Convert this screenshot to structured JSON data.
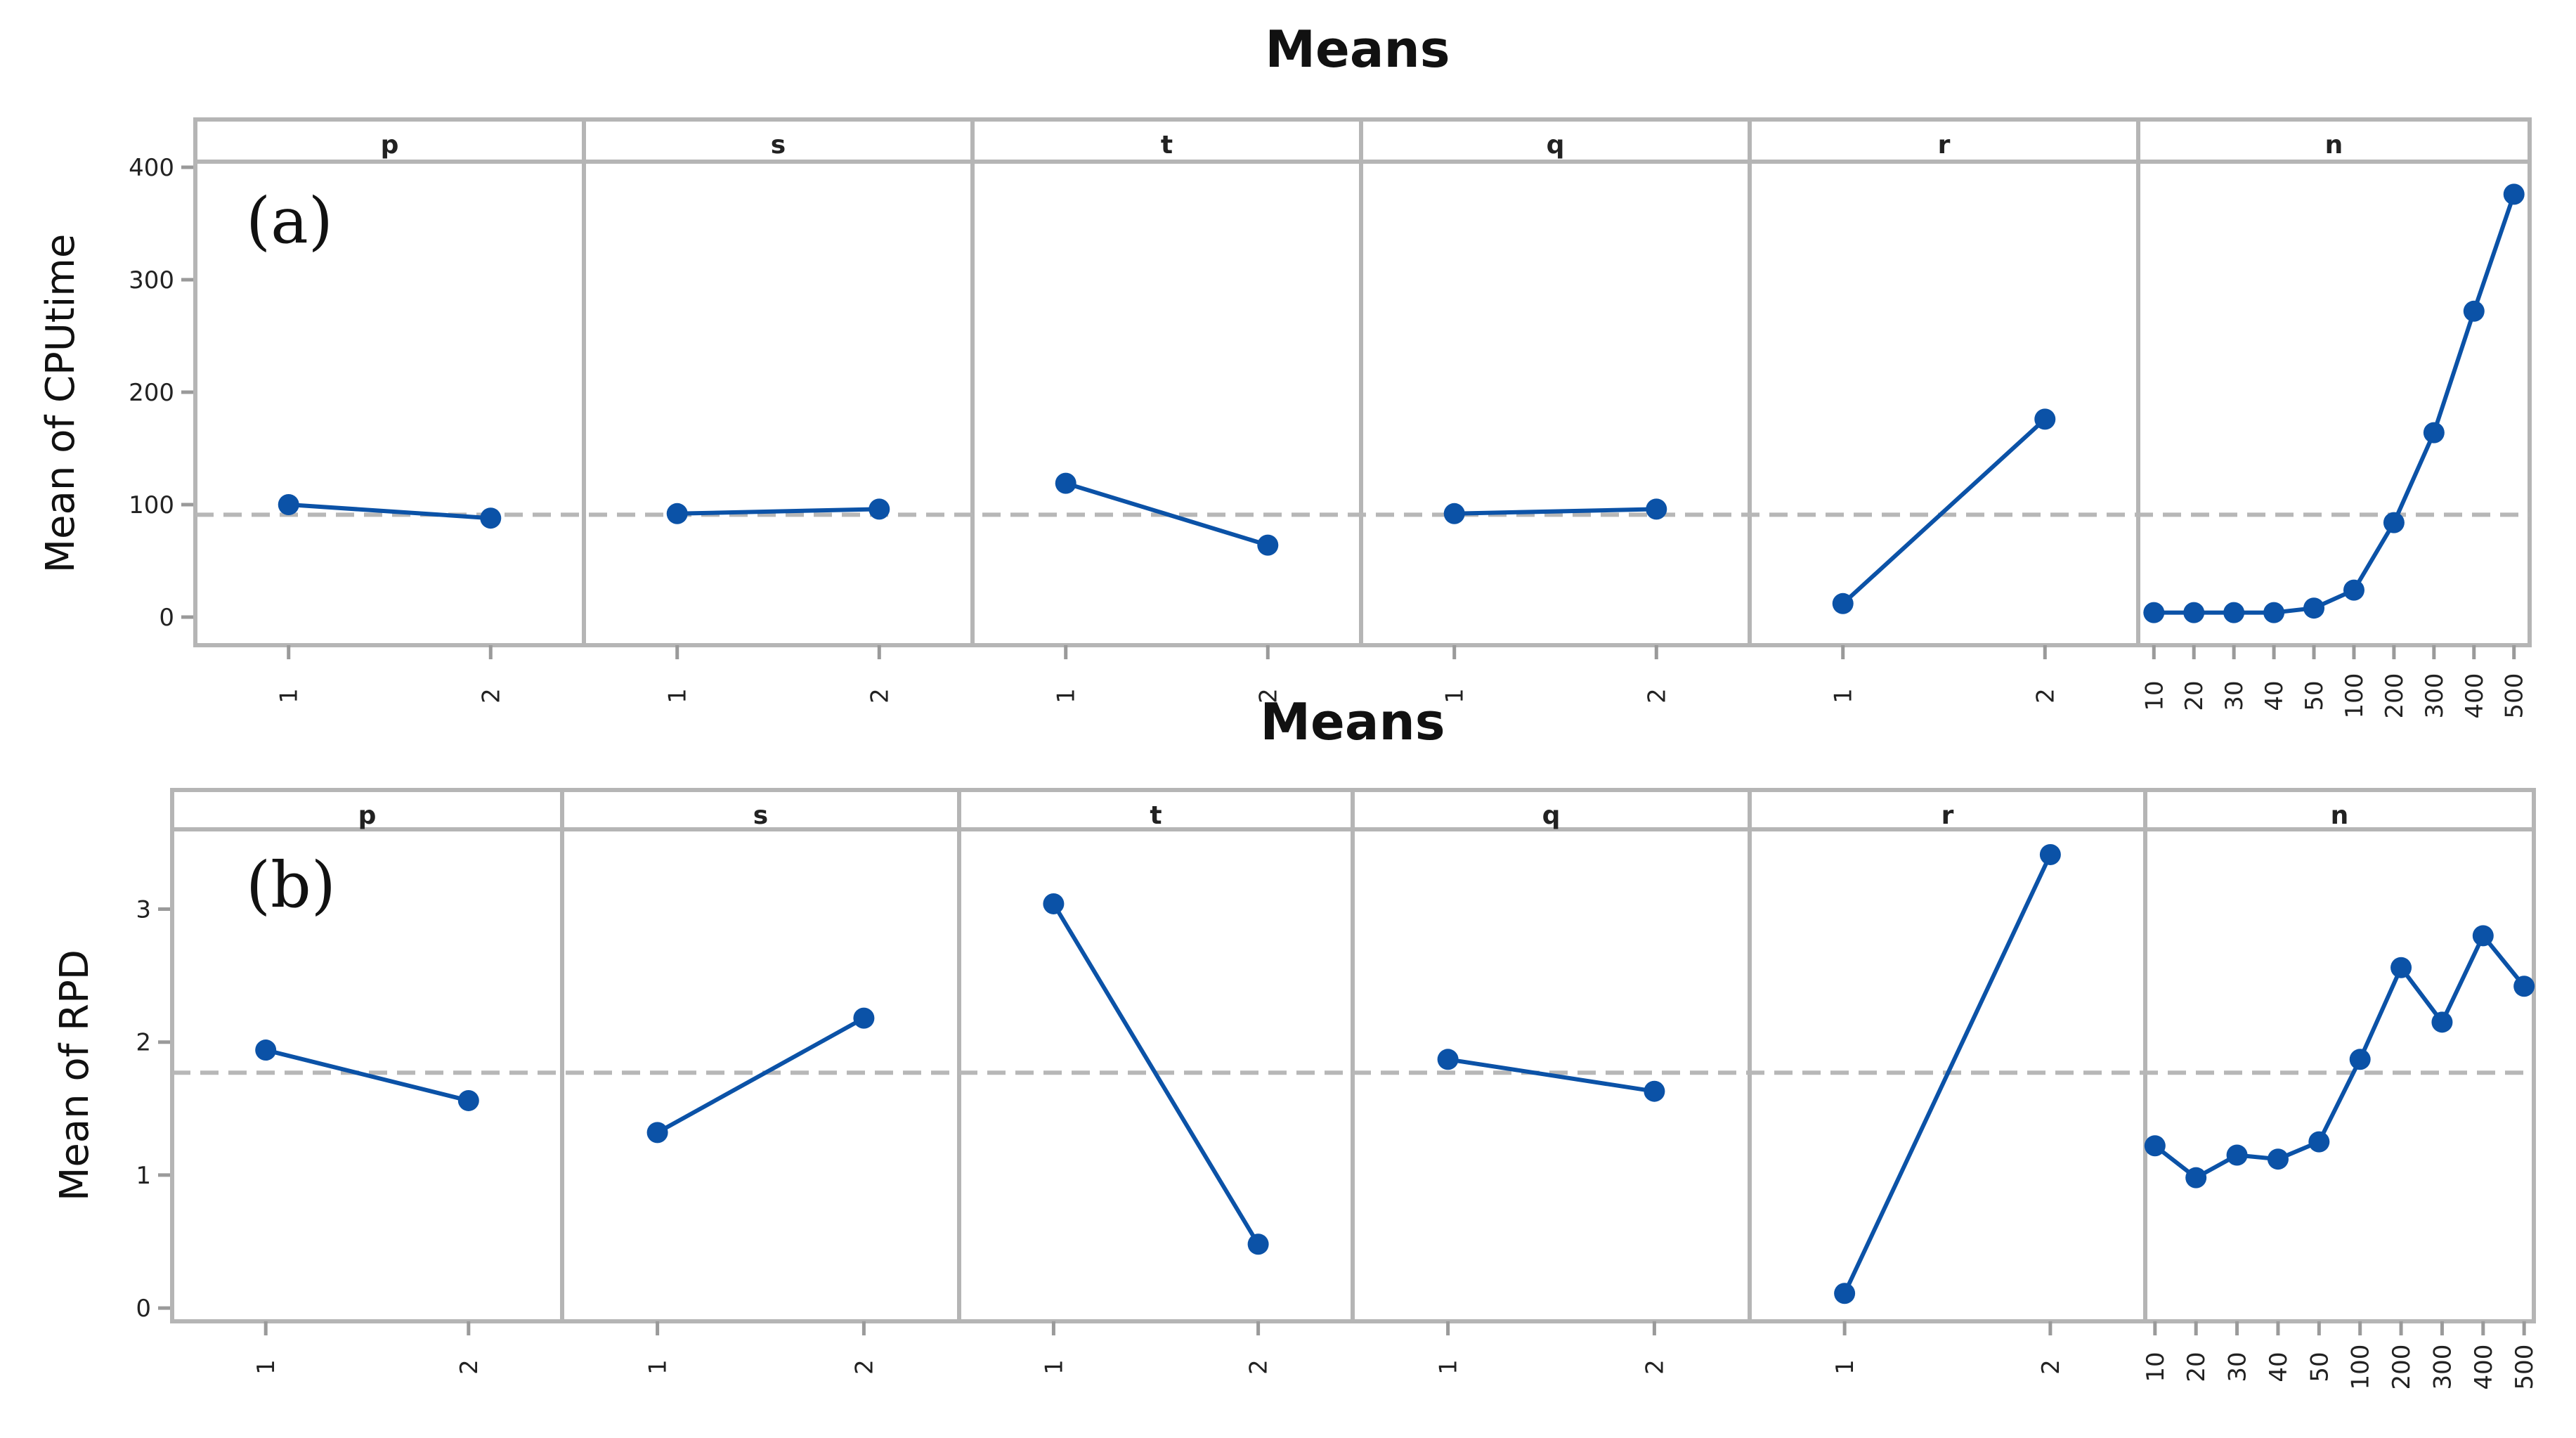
{
  "chart_data": [
    {
      "type": "line",
      "title": "Means",
      "panel_label": "(a)",
      "ylabel": "Mean of CPUtime",
      "ylim": [
        -25,
        405
      ],
      "yticks": [
        0,
        100,
        200,
        300,
        400
      ],
      "overall_mean": 91,
      "grid": false,
      "series_color": "#0b52a7",
      "mean_line_color": "#b7b7b7",
      "facets": [
        {
          "name": "p",
          "categories": [
            "1",
            "2"
          ],
          "values": [
            100,
            88
          ]
        },
        {
          "name": "s",
          "categories": [
            "1",
            "2"
          ],
          "values": [
            92,
            96
          ]
        },
        {
          "name": "t",
          "categories": [
            "1",
            "2"
          ],
          "values": [
            119,
            64
          ]
        },
        {
          "name": "q",
          "categories": [
            "1",
            "2"
          ],
          "values": [
            92,
            96
          ]
        },
        {
          "name": "r",
          "categories": [
            "1",
            "2"
          ],
          "values": [
            12,
            176
          ]
        },
        {
          "name": "n",
          "categories": [
            "10",
            "20",
            "30",
            "40",
            "50",
            "100",
            "200",
            "300",
            "400",
            "500"
          ],
          "values": [
            4,
            4,
            4,
            4,
            8,
            24,
            84,
            164,
            272,
            376
          ]
        }
      ]
    },
    {
      "type": "line",
      "title": "Means",
      "panel_label": "(b)",
      "ylabel": "Mean of RPD",
      "ylim": [
        -0.1,
        3.6
      ],
      "yticks": [
        0,
        1,
        2,
        3
      ],
      "overall_mean": 1.77,
      "grid": false,
      "series_color": "#0b52a7",
      "mean_line_color": "#b7b7b7",
      "facets": [
        {
          "name": "p",
          "categories": [
            "1",
            "2"
          ],
          "values": [
            1.94,
            1.56
          ]
        },
        {
          "name": "s",
          "categories": [
            "1",
            "2"
          ],
          "values": [
            1.32,
            2.18
          ]
        },
        {
          "name": "t",
          "categories": [
            "1",
            "2"
          ],
          "values": [
            3.04,
            0.48
          ]
        },
        {
          "name": "q",
          "categories": [
            "1",
            "2"
          ],
          "values": [
            1.87,
            1.63
          ]
        },
        {
          "name": "r",
          "categories": [
            "1",
            "2"
          ],
          "values": [
            0.11,
            3.41
          ]
        },
        {
          "name": "n",
          "categories": [
            "10",
            "20",
            "30",
            "40",
            "50",
            "100",
            "200",
            "300",
            "400",
            "500"
          ],
          "values": [
            1.22,
            0.98,
            1.15,
            1.12,
            1.25,
            1.87,
            2.56,
            2.15,
            2.8,
            2.42
          ]
        }
      ]
    }
  ]
}
